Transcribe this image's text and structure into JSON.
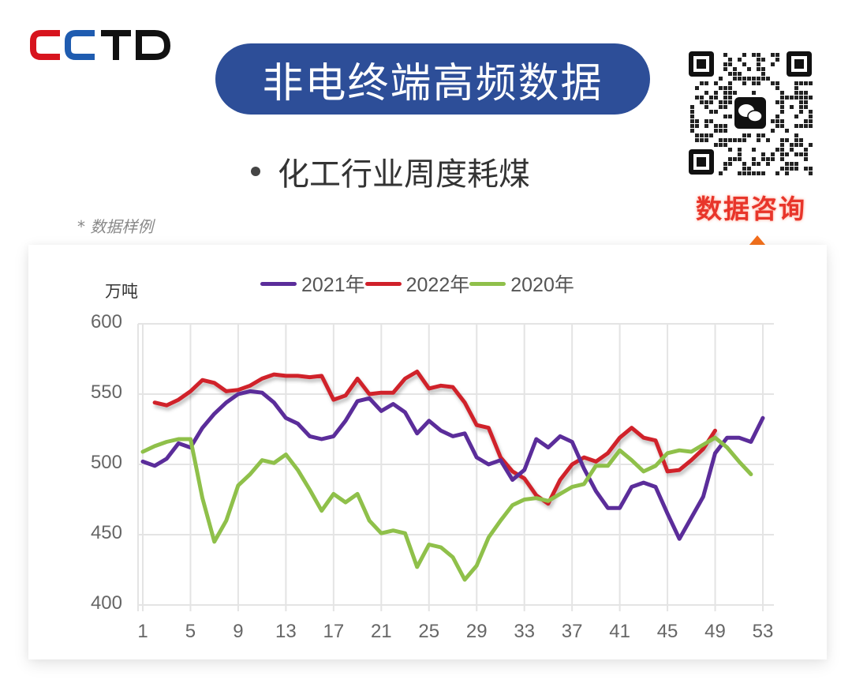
{
  "header": {
    "logo_text": "CCTD",
    "logo_colors": [
      "#d7141e",
      "#1f5cb0",
      "#111111",
      "#111111"
    ],
    "banner_title": "非电终端高频数据",
    "banner_color": "#2d4e98",
    "subtitle": "化工行业周度耗煤",
    "note": "* 数据样例"
  },
  "qr": {
    "icon": "wechat-qr-code",
    "cta_label": "数据咨询",
    "cta_color": "#e8352a",
    "arrow_icon": "arrow-up-icon"
  },
  "chart_data": {
    "type": "line",
    "title": "化工行业周度耗煤",
    "xlabel": "",
    "ylabel": "万吨",
    "ylim": [
      400,
      600
    ],
    "yticks": [
      400,
      450,
      500,
      550,
      600
    ],
    "xticks": [
      1,
      5,
      9,
      13,
      17,
      21,
      25,
      29,
      33,
      37,
      41,
      45,
      49,
      53
    ],
    "grid": true,
    "legend_position": "top",
    "series": [
      {
        "name": "2021年",
        "color": "#5b2d9a",
        "x": [
          1,
          2,
          3,
          4,
          5,
          6,
          7,
          8,
          9,
          10,
          11,
          12,
          13,
          14,
          15,
          16,
          17,
          18,
          19,
          20,
          21,
          22,
          23,
          24,
          25,
          26,
          27,
          28,
          29,
          30,
          31,
          32,
          33,
          34,
          35,
          36,
          37,
          38,
          39,
          40,
          41,
          42,
          43,
          44,
          45,
          46,
          47,
          48,
          49,
          50,
          51,
          52,
          53
        ],
        "values": [
          502,
          499,
          504,
          515,
          512,
          526,
          536,
          544,
          550,
          552,
          551,
          544,
          533,
          529,
          520,
          518,
          520,
          531,
          545,
          547,
          538,
          543,
          537,
          522,
          531,
          524,
          520,
          522,
          505,
          500,
          503,
          489,
          496,
          518,
          512,
          520,
          516,
          497,
          481,
          469,
          469,
          484,
          487,
          484,
          465,
          447,
          462,
          477,
          508,
          519,
          519,
          516,
          533
        ]
      },
      {
        "name": "2022年",
        "color": "#d0202a",
        "x": [
          2,
          3,
          4,
          5,
          6,
          7,
          8,
          9,
          10,
          11,
          12,
          13,
          14,
          15,
          16,
          17,
          18,
          19,
          20,
          21,
          22,
          23,
          24,
          25,
          26,
          27,
          28,
          29,
          30,
          31,
          32,
          33,
          34,
          35,
          36,
          37,
          38,
          39,
          40,
          41,
          42,
          43,
          44,
          45,
          46,
          47,
          48,
          49
        ],
        "values": [
          544,
          542,
          546,
          552,
          560,
          558,
          552,
          553,
          556,
          561,
          564,
          563,
          563,
          562,
          563,
          546,
          549,
          561,
          550,
          551,
          551,
          561,
          566,
          554,
          556,
          555,
          544,
          528,
          526,
          505,
          495,
          490,
          478,
          472,
          489,
          500,
          505,
          502,
          508,
          519,
          526,
          519,
          517,
          495,
          496,
          503,
          511,
          524
        ]
      },
      {
        "name": "2020年",
        "color": "#8fc04a",
        "x": [
          1,
          2,
          3,
          4,
          5,
          6,
          7,
          8,
          9,
          10,
          11,
          12,
          13,
          14,
          15,
          16,
          17,
          18,
          19,
          20,
          21,
          22,
          23,
          24,
          25,
          26,
          27,
          28,
          29,
          30,
          31,
          32,
          33,
          34,
          35,
          36,
          37,
          38,
          39,
          40,
          41,
          42,
          43,
          44,
          45,
          46,
          47,
          48,
          49,
          50,
          51,
          52
        ],
        "values": [
          509,
          513,
          516,
          518,
          518,
          476,
          445,
          460,
          485,
          493,
          503,
          501,
          507,
          496,
          482,
          467,
          479,
          473,
          479,
          460,
          451,
          453,
          451,
          427,
          443,
          441,
          434,
          418,
          428,
          448,
          460,
          471,
          475,
          476,
          474,
          479,
          484,
          486,
          499,
          499,
          510,
          503,
          495,
          499,
          508,
          510,
          509,
          514,
          519,
          512,
          502,
          493
        ]
      }
    ]
  }
}
